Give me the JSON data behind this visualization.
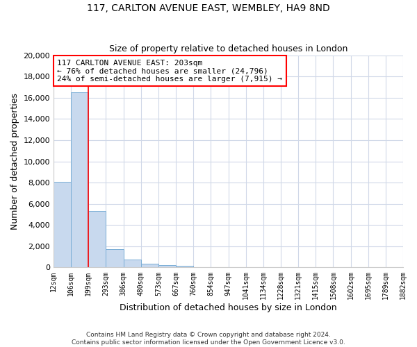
{
  "title": "117, CARLTON AVENUE EAST, WEMBLEY, HA9 8ND",
  "subtitle": "Size of property relative to detached houses in London",
  "xlabel": "Distribution of detached houses by size in London",
  "ylabel": "Number of detached properties",
  "bar_color": "#c8d9ee",
  "bar_edge_color": "#7aaed6",
  "bin_labels": [
    "12sqm",
    "106sqm",
    "199sqm",
    "293sqm",
    "386sqm",
    "480sqm",
    "573sqm",
    "667sqm",
    "760sqm",
    "854sqm",
    "947sqm",
    "1041sqm",
    "1134sqm",
    "1228sqm",
    "1321sqm",
    "1415sqm",
    "1508sqm",
    "1602sqm",
    "1695sqm",
    "1789sqm",
    "1882sqm"
  ],
  "bar_values": [
    8100,
    16500,
    5300,
    1750,
    750,
    350,
    230,
    130,
    0,
    0,
    0,
    0,
    0,
    0,
    0,
    0,
    0,
    0,
    0,
    0
  ],
  "n_bins": 20,
  "ylim": [
    0,
    20000
  ],
  "yticks": [
    0,
    2000,
    4000,
    6000,
    8000,
    10000,
    12000,
    14000,
    16000,
    18000,
    20000
  ],
  "red_line_x": 2,
  "annotation_line1": "117 CARLTON AVENUE EAST: 203sqm",
  "annotation_line2": "← 76% of detached houses are smaller (24,796)",
  "annotation_line3": "24% of semi-detached houses are larger (7,915) →",
  "footer_line1": "Contains HM Land Registry data © Crown copyright and database right 2024.",
  "footer_line2": "Contains public sector information licensed under the Open Government Licence v3.0.",
  "background_color": "#ffffff",
  "grid_color": "#d0d8e8",
  "figsize": [
    6.0,
    5.0
  ],
  "dpi": 100
}
